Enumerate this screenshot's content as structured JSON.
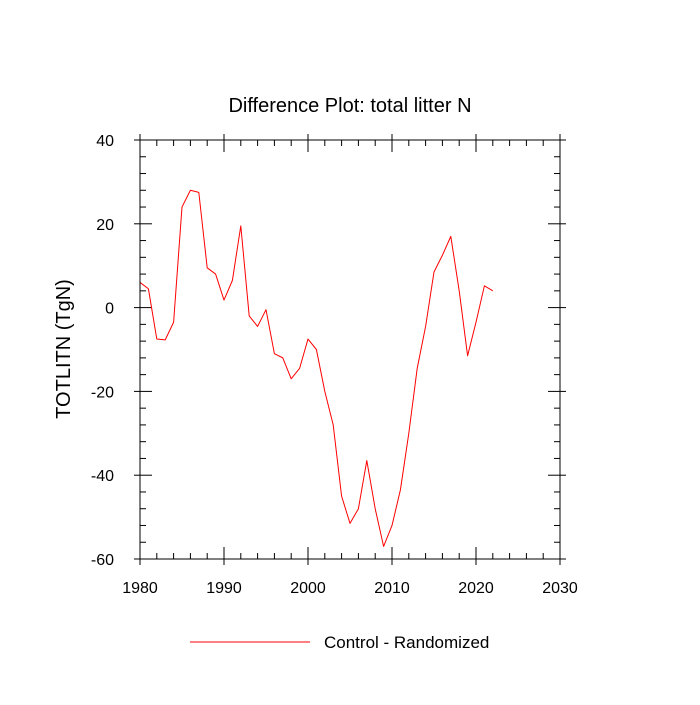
{
  "chart_data": {
    "type": "line",
    "title": "Difference Plot: total litter N",
    "xlabel": "",
    "ylabel": "TOTLITN  (TgN)",
    "xlim": [
      1980,
      2030
    ],
    "ylim": [
      -60,
      40
    ],
    "xticks": [
      1980,
      1990,
      2000,
      2010,
      2020,
      2030
    ],
    "yticks": [
      40,
      20,
      0,
      -20,
      -40,
      -60
    ],
    "grid": false,
    "legend_position": "bottom-center",
    "series": [
      {
        "name": "Control - Randomized",
        "color": "#ff0000",
        "x": [
          1980,
          1981,
          1982,
          1983,
          1984,
          1985,
          1986,
          1987,
          1988,
          1989,
          1990,
          1991,
          1992,
          1993,
          1994,
          1995,
          1996,
          1997,
          1998,
          1999,
          2000,
          2001,
          2002,
          2003,
          2004,
          2005,
          2006,
          2007,
          2008,
          2009,
          2010,
          2011,
          2012,
          2013,
          2014,
          2015,
          2016,
          2017,
          2018,
          2019,
          2020,
          2021,
          2022
        ],
        "y": [
          6,
          4.5,
          -7.5,
          -7.7,
          -3.5,
          24,
          28,
          27.5,
          9.5,
          8,
          1.8,
          6.5,
          19.5,
          -2,
          -4.5,
          -0.5,
          -11,
          -12,
          -17,
          -14.5,
          -7.5,
          -10,
          -20,
          -28,
          -45,
          -51.5,
          -48,
          -36.5,
          -48,
          -57,
          -52,
          -43.5,
          -30,
          -14.5,
          -4.5,
          8.5,
          12.5,
          17,
          4,
          -11.5,
          -3.5,
          5.2,
          4
        ]
      }
    ]
  }
}
